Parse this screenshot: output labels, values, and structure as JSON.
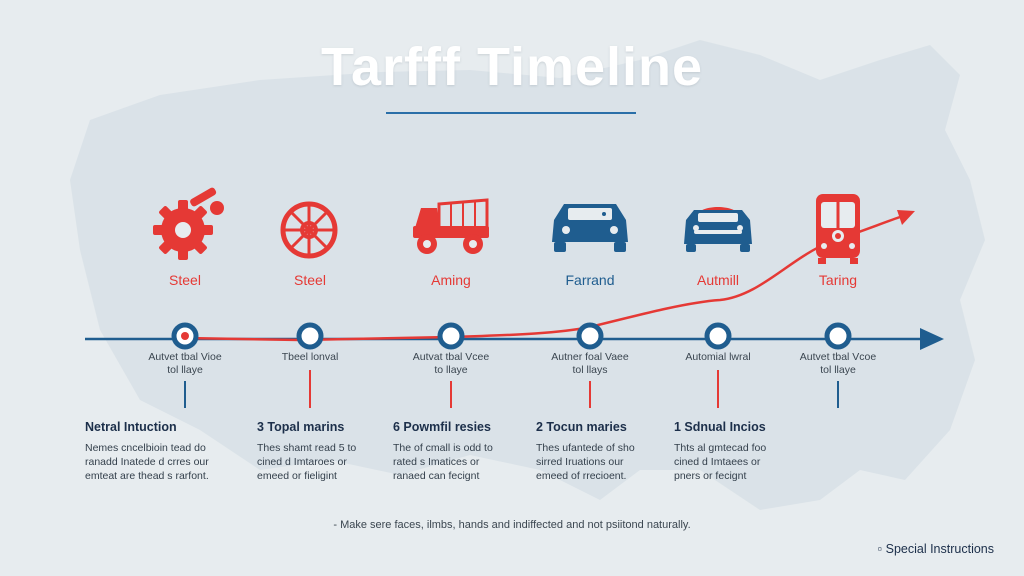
{
  "title": "Tarfff Timeline",
  "colors": {
    "red": "#e53935",
    "blue": "#1f5d8f",
    "ink": "#1c2f4a",
    "background": "#e7ecef"
  },
  "nodes": [
    {
      "label": "Steel",
      "icon": "gear-icon",
      "label_color": "#e53935",
      "sub": [
        "Autvet tbal Vioe",
        "tol llaye"
      ]
    },
    {
      "label": "Steel",
      "icon": "wheel-icon",
      "label_color": "#e53935",
      "sub": [
        "Tbeel lonval"
      ]
    },
    {
      "label": "Aming",
      "icon": "truck-icon",
      "label_color": "#e53935",
      "sub": [
        "Autvat tbal Vcee",
        "to llaye"
      ]
    },
    {
      "label": "Farrand",
      "icon": "car-icon",
      "label_color": "#1f5d8f",
      "sub": [
        "Autner foal Vaee",
        "tol llays"
      ]
    },
    {
      "label": "Autmill",
      "icon": "sedan-icon",
      "label_color": "#e53935",
      "sub": [
        "Automial lwral"
      ]
    },
    {
      "label": "Taring",
      "icon": "bus-icon",
      "label_color": "#e53935",
      "sub": [
        "Autvet tbal Vcoe",
        "tol llaye"
      ]
    }
  ],
  "blocks": [
    {
      "heading": "Netral Intuction",
      "lines": [
        "Nemes cncelbioin tead do",
        "ranadd Inatede d crres our",
        "emteat are thead s rarfont."
      ]
    },
    {
      "heading": "3 Topal marins",
      "lines": [
        "Thes shamt read 5 to",
        "cined d Imtaroes or",
        "emeed or fieligint"
      ]
    },
    {
      "heading": "6 Powmfil resies",
      "lines": [
        "The of cmall is odd to",
        "rated s Imatices or",
        "ranaed can fecignt"
      ]
    },
    {
      "heading": "2 Tocun maries",
      "lines": [
        "Thes ufantede of sho",
        "sirred Iruations our",
        "emeed of rrecioent."
      ]
    },
    {
      "heading": "1 Sdnual Incios",
      "lines": [
        "Thts al gmtecad foo",
        "cined d Imtaees or",
        "pners or fecignt"
      ]
    }
  ],
  "note": "- Make sere faces, ilmbs,  hands and indiffected and not psiitond naturally.",
  "special": "▫ Special Instructions"
}
